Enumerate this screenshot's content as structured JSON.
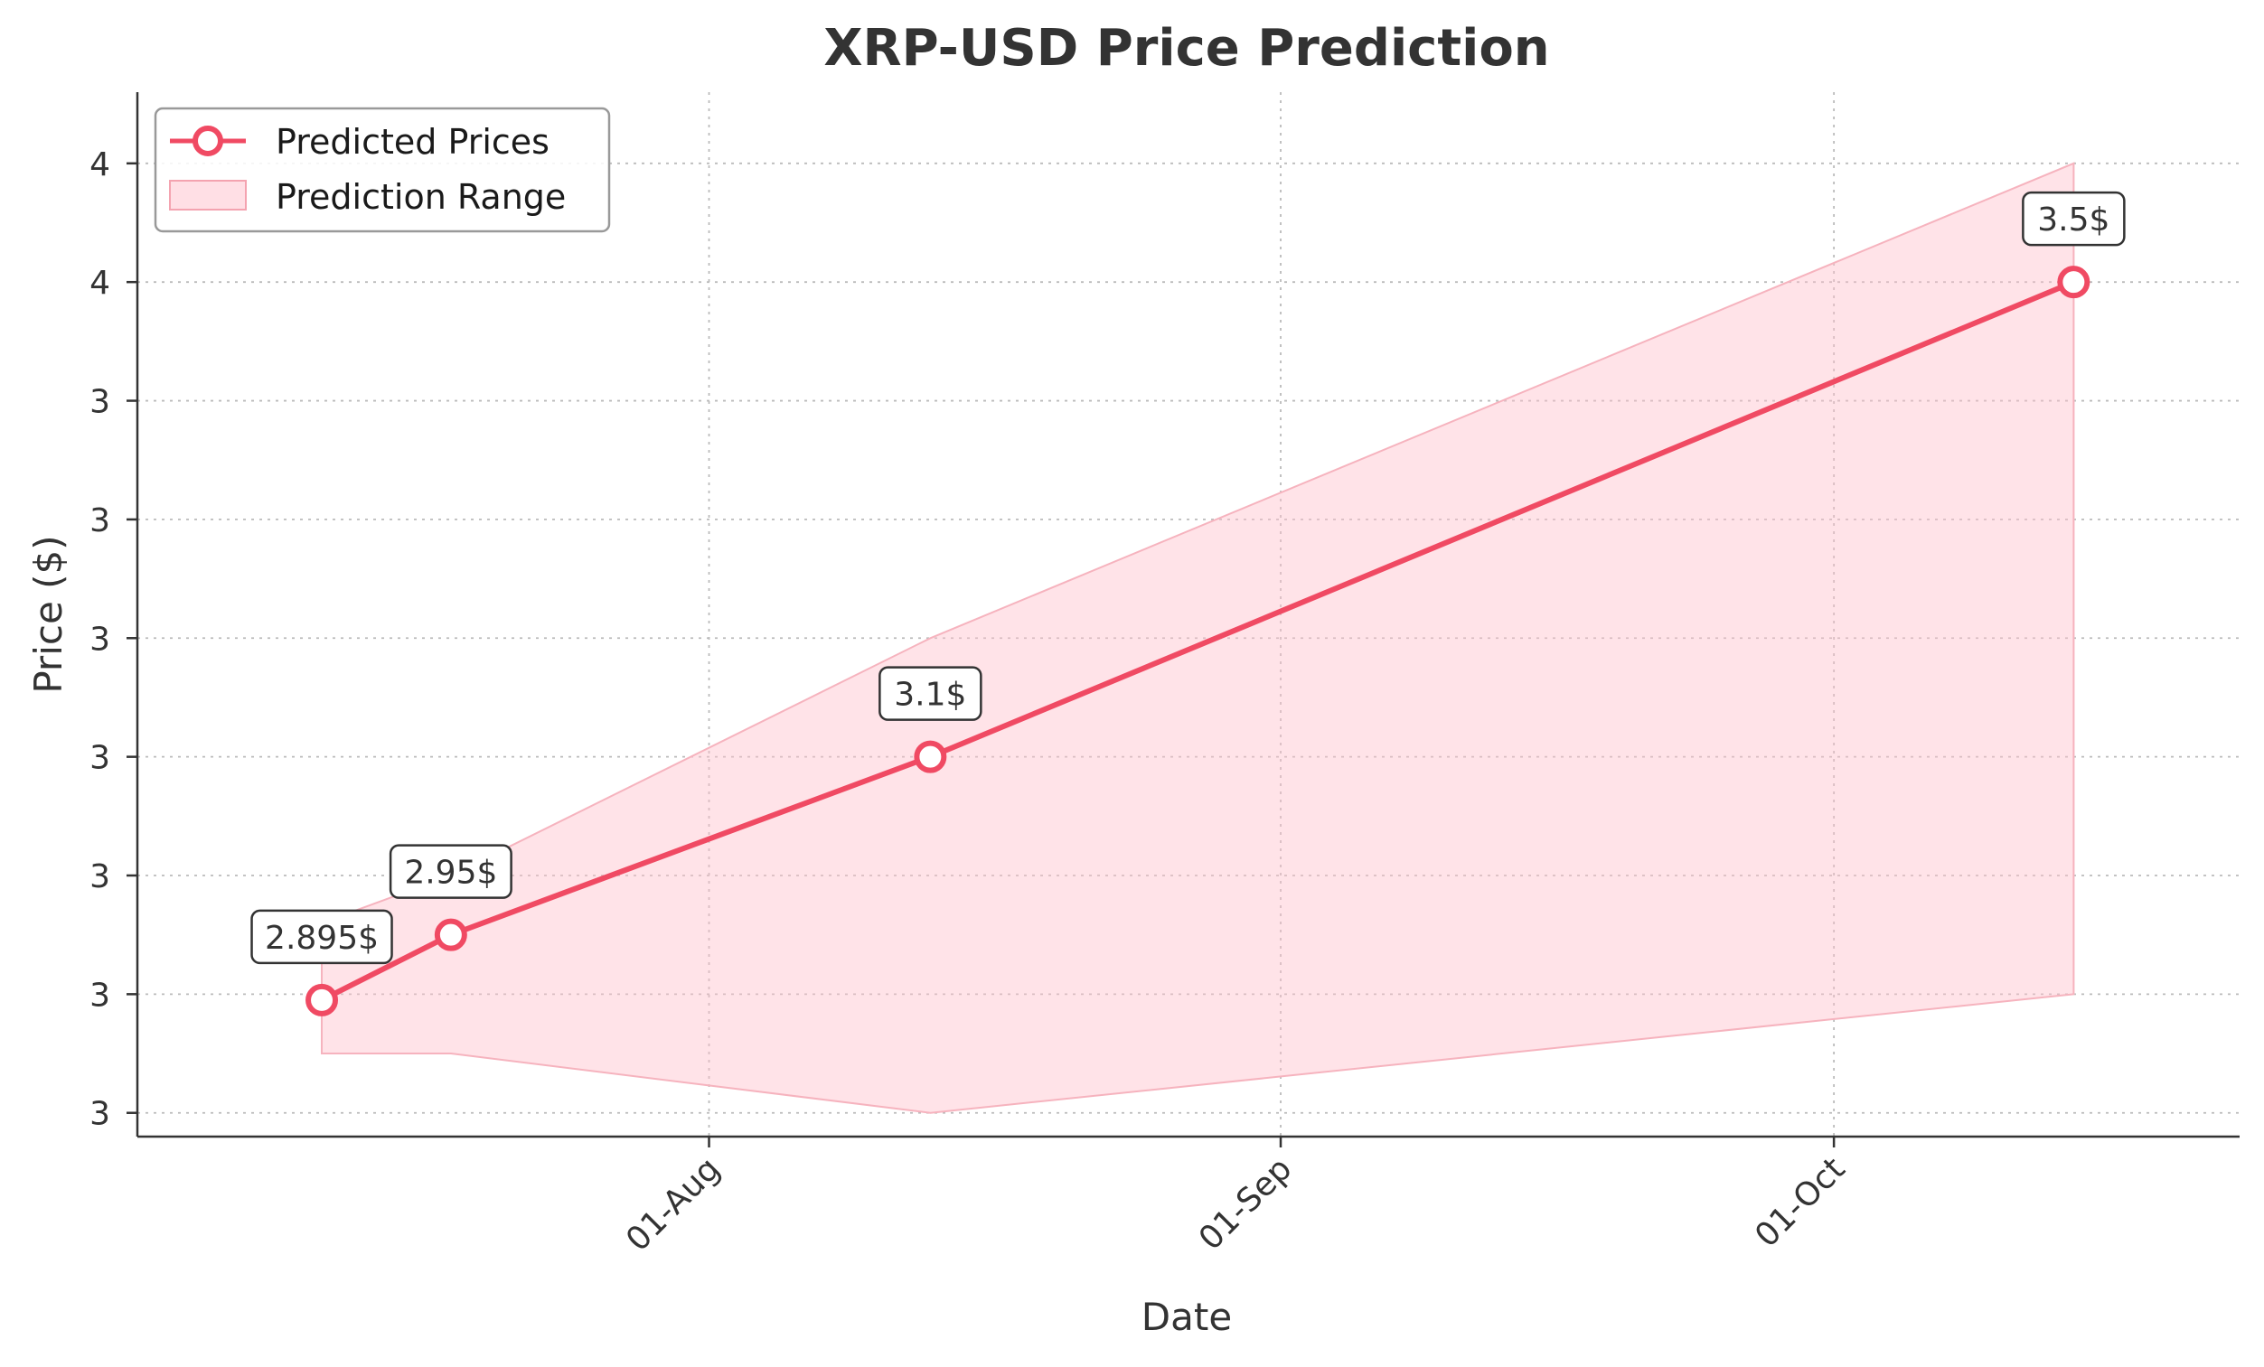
{
  "chart_data": {
    "type": "line",
    "title": "XRP-USD Price Prediction",
    "xlabel": "Date",
    "ylabel": "Price ($)",
    "x_tick_labels": [
      "01-Aug",
      "01-Sep",
      "01-Oct"
    ],
    "y_tick_labels": [
      "3",
      "3",
      "3",
      "3",
      "3",
      "3",
      "3",
      "4",
      "4"
    ],
    "grid": true,
    "legend_position": "top-left",
    "series": [
      {
        "name": "Predicted Prices",
        "color": "#f04a63",
        "marker": "circle",
        "points": [
          {
            "x": "2024-07-11",
            "y": 2.895,
            "label": "2.895$"
          },
          {
            "x": "2024-07-18",
            "y": 2.95,
            "label": "2.95$"
          },
          {
            "x": "2024-08-13",
            "y": 3.1,
            "label": "3.1$"
          },
          {
            "x": "2024-10-14",
            "y": 3.5,
            "label": "3.5$"
          }
        ]
      }
    ],
    "range": {
      "name": "Prediction Range",
      "color": "#ffc0cb",
      "points": [
        {
          "x": "2024-07-11",
          "low": 2.85,
          "high": 2.96
        },
        {
          "x": "2024-07-18",
          "low": 2.85,
          "high": 3.0
        },
        {
          "x": "2024-08-13",
          "low": 2.8,
          "high": 3.2
        },
        {
          "x": "2024-10-14",
          "low": 2.9,
          "high": 3.6
        }
      ]
    }
  }
}
